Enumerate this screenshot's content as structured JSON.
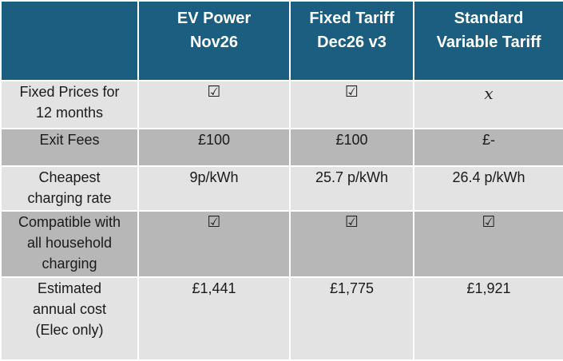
{
  "header": {
    "corner": "",
    "columns": [
      {
        "line1": "EV Power",
        "line2": "Nov26"
      },
      {
        "line1": "Fixed Tariff",
        "line2": "Dec26 v3"
      },
      {
        "line1": "Standard",
        "line2": "Variable Tariff"
      }
    ]
  },
  "rows": {
    "fixed_prices": {
      "label_lines": [
        "Fixed Prices for",
        "12 months"
      ],
      "values": [
        "☑",
        "☑",
        "𝑥"
      ]
    },
    "exit_fees": {
      "label_lines": [
        "Exit Fees"
      ],
      "values": [
        "£100",
        "£100",
        "£-"
      ]
    },
    "cheapest_rate": {
      "label_lines": [
        "Cheapest",
        "charging rate"
      ],
      "values": [
        "9p/kWh",
        "25.7 p/kWh",
        "26.4 p/kWh"
      ]
    },
    "compatible": {
      "label_lines": [
        "Compatible with",
        "all household",
        "charging"
      ],
      "values": [
        "☑",
        "☑",
        "☑"
      ]
    },
    "annual_cost": {
      "label_lines": [
        "Estimated",
        "annual cost",
        "(Elec only)"
      ],
      "values": [
        "£1,441",
        "£1,775",
        "£1,921"
      ]
    }
  },
  "colors": {
    "header_bg": "#1b5e80",
    "row_light": "#e3e3e3",
    "row_dark": "#b7b7b7"
  },
  "icons": {
    "included": "checkbox-checked-icon",
    "not_included": "cross-icon"
  }
}
